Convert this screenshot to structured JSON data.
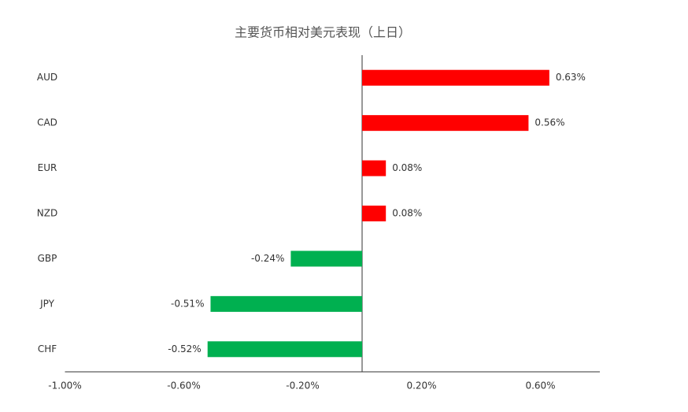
{
  "chart_data": {
    "type": "hbar",
    "title": "主要货币相对美元表现（上日）",
    "categories": [
      "AUD",
      "CAD",
      "EUR",
      "NZD",
      "GBP",
      "JPY",
      "CHF"
    ],
    "values": [
      0.63,
      0.56,
      0.08,
      0.08,
      -0.24,
      -0.51,
      -0.52
    ],
    "value_labels": [
      "0.63%",
      "0.56%",
      "0.08%",
      "0.08%",
      "-0.24%",
      "-0.51%",
      "-0.52%"
    ],
    "colors": [
      "#ff0000",
      "#ff0000",
      "#ff0000",
      "#ff0000",
      "#00b050",
      "#00b050",
      "#00b050"
    ],
    "xlim": [
      -1.0,
      0.8
    ],
    "xticks": [
      {
        "value": -1.0,
        "label": "-1.00%"
      },
      {
        "value": -0.6,
        "label": "-0.60%"
      },
      {
        "value": -0.2,
        "label": "-0.20%"
      },
      {
        "value": 0.2,
        "label": "0.20%"
      },
      {
        "value": 0.6,
        "label": "0.60%"
      }
    ]
  }
}
